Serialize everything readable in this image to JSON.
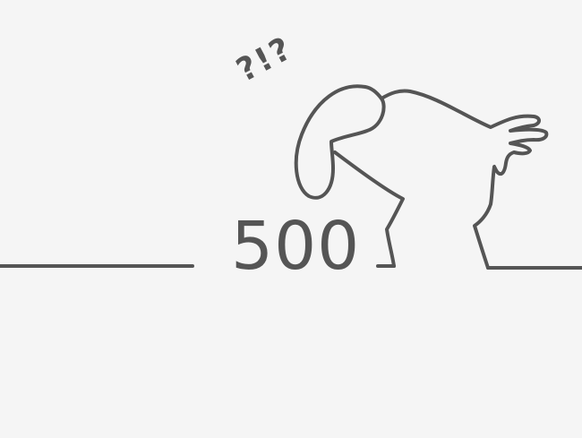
{
  "error": {
    "code": "500",
    "exclamation": "?!?"
  },
  "colors": {
    "background": "#f5f5f5",
    "stroke": "#555555"
  },
  "icons": {
    "figure": "confused-figure-icon"
  }
}
